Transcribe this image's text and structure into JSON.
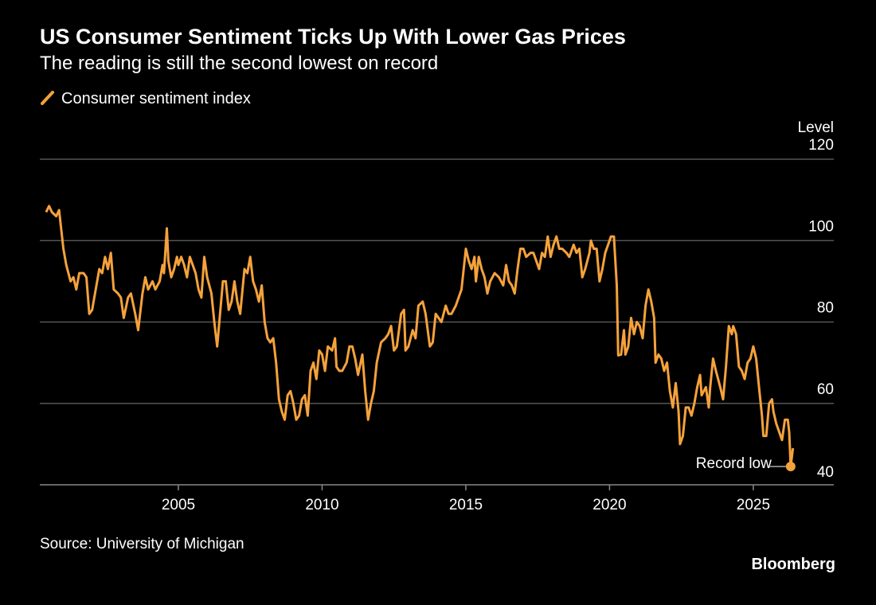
{
  "chart_data": {
    "type": "line",
    "title": "US Consumer Sentiment Ticks Up With Lower Gas Prices",
    "subtitle": "The reading is still the second lowest on record",
    "y_axis_label": "Level",
    "source": "Source: University of Michigan",
    "brand": "Bloomberg",
    "annotation": "Record low",
    "xlim": [
      2000.18,
      2027.8
    ],
    "xticks": [
      2005,
      2010,
      2015,
      2020,
      2025
    ],
    "ylim": [
      40,
      120
    ],
    "yticks": [
      40,
      60,
      80,
      100,
      120
    ],
    "grid": true,
    "x": [
      2000.4,
      2000.5,
      2000.6,
      2000.75,
      2000.85,
      2001.0,
      2001.1,
      2001.25,
      2001.35,
      2001.45,
      2001.55,
      2001.7,
      2001.8,
      2001.9,
      2002.0,
      2002.15,
      2002.25,
      2002.35,
      2002.45,
      2002.55,
      2002.65,
      2002.75,
      2002.9,
      2003.0,
      2003.1,
      2003.25,
      2003.35,
      2003.5,
      2003.6,
      2003.75,
      2003.85,
      2003.95,
      2004.1,
      2004.2,
      2004.35,
      2004.45,
      2004.5,
      2004.6,
      2004.65,
      2004.75,
      2004.85,
      2004.95,
      2005.0,
      2005.1,
      2005.2,
      2005.3,
      2005.4,
      2005.5,
      2005.6,
      2005.7,
      2005.8,
      2005.9,
      2006.0,
      2006.15,
      2006.25,
      2006.35,
      2006.45,
      2006.55,
      2006.65,
      2006.75,
      2006.85,
      2006.95,
      2007.05,
      2007.15,
      2007.3,
      2007.4,
      2007.5,
      2007.6,
      2007.7,
      2007.8,
      2007.9,
      2008.0,
      2008.1,
      2008.2,
      2008.3,
      2008.4,
      2008.5,
      2008.6,
      2008.7,
      2008.8,
      2008.9,
      2009.0,
      2009.1,
      2009.2,
      2009.3,
      2009.4,
      2009.5,
      2009.6,
      2009.7,
      2009.8,
      2009.9,
      2010.0,
      2010.1,
      2010.2,
      2010.35,
      2010.45,
      2010.5,
      2010.6,
      2010.7,
      2010.85,
      2010.95,
      2011.05,
      2011.15,
      2011.25,
      2011.4,
      2011.5,
      2011.6,
      2011.7,
      2011.8,
      2011.9,
      2012.05,
      2012.2,
      2012.3,
      2012.4,
      2012.5,
      2012.6,
      2012.75,
      2012.85,
      2012.9,
      2013.0,
      2013.15,
      2013.25,
      2013.35,
      2013.5,
      2013.6,
      2013.75,
      2013.85,
      2013.95,
      2014.05,
      2014.15,
      2014.3,
      2014.4,
      2014.5,
      2014.65,
      2014.75,
      2014.85,
      2015.0,
      2015.1,
      2015.2,
      2015.3,
      2015.35,
      2015.45,
      2015.55,
      2015.65,
      2015.75,
      2015.85,
      2016.0,
      2016.15,
      2016.3,
      2016.4,
      2016.5,
      2016.6,
      2016.7,
      2016.8,
      2016.9,
      2017.0,
      2017.1,
      2017.25,
      2017.35,
      2017.45,
      2017.55,
      2017.65,
      2017.75,
      2017.85,
      2017.95,
      2018.05,
      2018.15,
      2018.25,
      2018.35,
      2018.5,
      2018.6,
      2018.75,
      2018.85,
      2018.95,
      2019.05,
      2019.15,
      2019.3,
      2019.35,
      2019.45,
      2019.55,
      2019.65,
      2019.75,
      2019.85,
      2019.95,
      2020.05,
      2020.15,
      2020.25,
      2020.3,
      2020.4,
      2020.5,
      2020.55,
      2020.65,
      2020.75,
      2020.85,
      2020.95,
      2021.05,
      2021.15,
      2021.25,
      2021.35,
      2021.45,
      2021.55,
      2021.6,
      2021.7,
      2021.8,
      2021.9,
      2022.0,
      2022.1,
      2022.2,
      2022.3,
      2022.4,
      2022.45,
      2022.55,
      2022.65,
      2022.75,
      2022.85,
      2022.95,
      2023.05,
      2023.15,
      2023.2,
      2023.35,
      2023.45,
      2023.5,
      2023.6,
      2023.7,
      2023.85,
      2023.95,
      2024.05,
      2024.15,
      2024.25,
      2024.3,
      2024.4,
      2024.5,
      2024.6,
      2024.7,
      2024.8,
      2024.9,
      2025.0,
      2025.1,
      2025.2,
      2025.3,
      2025.35,
      2025.45,
      2025.55,
      2025.65,
      2025.7,
      2025.8,
      2025.9,
      2026.0,
      2026.1,
      2026.2,
      2026.25,
      2026.3,
      2026.38
    ],
    "series": [
      {
        "name": "Consumer sentiment index",
        "color": "#f5a23b",
        "values": [
          107,
          108.5,
          107,
          106,
          107.5,
          98,
          94,
          90,
          91,
          88,
          92,
          92,
          91,
          82,
          83,
          89,
          93,
          92,
          96,
          93,
          97,
          88,
          87,
          86,
          81,
          86,
          87,
          82,
          78,
          87,
          91,
          88,
          90,
          88,
          90,
          94,
          92,
          103,
          95,
          91,
          93,
          96,
          94,
          96,
          94,
          91,
          96,
          94,
          92,
          88,
          86,
          96,
          91,
          87,
          80,
          74,
          82,
          90,
          90,
          83,
          85,
          90,
          85,
          82,
          93,
          92,
          96,
          90,
          88,
          85,
          89,
          80,
          76,
          75,
          76,
          70,
          61,
          58,
          56,
          62,
          63,
          60,
          56,
          57,
          61,
          62,
          57,
          68,
          70,
          66,
          73,
          72,
          68,
          74,
          73,
          76,
          69,
          68,
          68,
          70,
          74,
          74,
          71,
          67,
          72,
          63,
          56,
          60,
          63,
          70,
          75,
          76,
          77,
          79,
          73,
          74,
          82,
          83,
          73,
          74,
          78,
          76,
          84,
          85,
          82,
          74,
          75,
          82,
          81,
          80,
          84,
          82,
          82,
          84,
          86,
          88,
          98,
          95,
          93,
          96,
          90,
          96,
          93,
          91,
          87,
          90,
          92,
          91,
          89,
          94,
          90,
          89,
          87,
          93,
          98,
          98,
          96,
          97,
          97,
          95,
          93,
          97,
          96,
          101,
          96,
          99,
          101,
          98,
          98,
          97,
          96,
          99,
          97,
          98,
          91,
          93,
          97,
          100,
          98,
          98,
          90,
          93,
          97,
          99,
          101,
          101,
          89,
          71.8,
          72,
          78,
          72,
          74,
          81,
          77,
          80,
          79,
          76,
          84,
          88,
          85,
          81,
          70,
          72,
          71,
          68,
          70,
          63,
          59,
          65,
          58,
          50,
          52,
          59,
          59,
          57,
          60,
          64,
          67,
          62,
          64,
          59,
          64,
          71,
          68,
          64,
          61,
          69,
          79,
          77,
          79,
          77,
          69,
          68,
          66,
          70,
          71,
          74,
          71,
          64,
          57,
          52,
          52,
          60,
          61,
          58,
          55,
          53,
          51,
          56,
          56,
          53,
          44.5,
          49
        ]
      }
    ]
  }
}
